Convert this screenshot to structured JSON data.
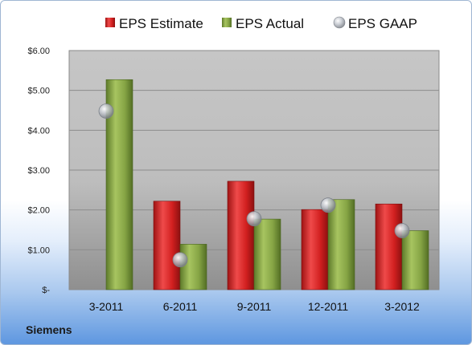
{
  "company": "Siemens",
  "chart_data": {
    "type": "bar",
    "categories": [
      "3-2011",
      "6-2011",
      "9-2011",
      "12-2011",
      "3-2012"
    ],
    "series": [
      {
        "name": "EPS Estimate",
        "type": "bar",
        "color": "#d42a2a",
        "values": [
          null,
          2.22,
          2.72,
          2.01,
          2.15
        ]
      },
      {
        "name": "EPS Actual",
        "type": "bar",
        "color": "#84a443",
        "values": [
          5.27,
          1.14,
          1.77,
          2.26,
          1.48
        ]
      },
      {
        "name": "EPS GAAP",
        "type": "scatter",
        "color": "#b8bcc4",
        "values": [
          4.48,
          0.75,
          1.78,
          2.12,
          1.48
        ]
      }
    ],
    "yticks": [
      "$-",
      "$1.00",
      "$2.00",
      "$3.00",
      "$4.00",
      "$5.00",
      "$6.00"
    ],
    "ylim": [
      0,
      6
    ],
    "grid": true,
    "legend_position": "top"
  }
}
